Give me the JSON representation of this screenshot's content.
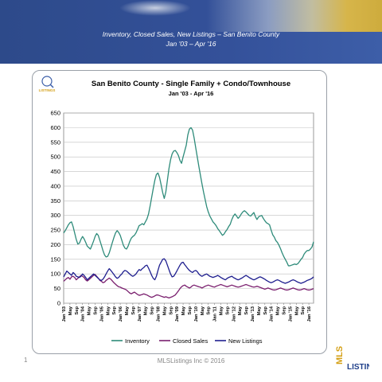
{
  "slide": {
    "title": "Inventory, Closed Sales, New Listings – San Benito County",
    "subtitle": "Jan '03 – Apr '16",
    "page_number": "1",
    "copyright": "MLSListings Inc © 2016",
    "logo_top": "MLS",
    "logo_bottom": "LISTINGS",
    "badge_text": "LISTINGS"
  },
  "chart_data": {
    "type": "line",
    "title": "San Benito County - Single Family + Condo/Townhouse",
    "subtitle": "Jan '03 - Apr '16",
    "ylim": [
      0,
      650
    ],
    "yticks": [
      0,
      50,
      100,
      150,
      200,
      250,
      300,
      350,
      400,
      450,
      500,
      550,
      600,
      650
    ],
    "grid": true,
    "legend": "bottom",
    "xticks": [
      "Jan '03",
      "May",
      "Sep",
      "Jan '04",
      "May",
      "Sep",
      "Jan '05",
      "May",
      "Sep",
      "Jan '06",
      "May",
      "Sep",
      "Jan '07",
      "May",
      "Sep",
      "Jan '08",
      "May",
      "Sep",
      "Jan '09",
      "May",
      "Sep",
      "Jan '10",
      "May",
      "Sep",
      "Jan '11",
      "May",
      "Sep",
      "Jan '12",
      "May",
      "Sep",
      "Jan '13",
      "May",
      "Sep",
      "Jan '14",
      "May",
      "Sep",
      "Jan '15",
      "May",
      "Sep",
      "Jan '16"
    ],
    "x_months": 160,
    "series": [
      {
        "name": "Inventory",
        "color": "#2e8b7a",
        "values": [
          240,
          248,
          258,
          268,
          275,
          278,
          262,
          240,
          218,
          202,
          205,
          218,
          228,
          220,
          208,
          195,
          190,
          185,
          198,
          212,
          228,
          238,
          232,
          215,
          198,
          180,
          165,
          158,
          160,
          172,
          190,
          208,
          225,
          240,
          248,
          242,
          232,
          215,
          198,
          188,
          185,
          195,
          210,
          222,
          228,
          232,
          240,
          252,
          265,
          268,
          272,
          268,
          278,
          288,
          305,
          332,
          362,
          392,
          420,
          440,
          445,
          430,
          405,
          378,
          358,
          380,
          420,
          460,
          490,
          510,
          520,
          522,
          515,
          505,
          488,
          478,
          500,
          520,
          540,
          575,
          595,
          600,
          592,
          565,
          532,
          500,
          468,
          438,
          408,
          380,
          355,
          330,
          312,
          298,
          288,
          278,
          272,
          265,
          255,
          248,
          240,
          232,
          236,
          245,
          252,
          262,
          270,
          286,
          298,
          305,
          298,
          290,
          296,
          305,
          312,
          316,
          312,
          306,
          300,
          298,
          304,
          310,
          296,
          286,
          295,
          298,
          300,
          290,
          282,
          275,
          272,
          268,
          250,
          234,
          226,
          214,
          208,
          198,
          186,
          172,
          160,
          150,
          140,
          128,
          128,
          130,
          132,
          134,
          132,
          135,
          142,
          150,
          156,
          168,
          175,
          180,
          180,
          185,
          192,
          210
        ]
      },
      {
        "name": "Closed Sales",
        "color": "#7a1f6e",
        "values": [
          75,
          80,
          85,
          88,
          82,
          90,
          92,
          88,
          80,
          85,
          90,
          95,
          92,
          88,
          80,
          76,
          80,
          85,
          90,
          95,
          98,
          92,
          86,
          78,
          75,
          70,
          72,
          78,
          82,
          86,
          82,
          76,
          70,
          65,
          60,
          56,
          55,
          52,
          50,
          48,
          45,
          40,
          35,
          32,
          35,
          38,
          34,
          30,
          27,
          28,
          30,
          32,
          30,
          28,
          25,
          22,
          20,
          22,
          25,
          28,
          28,
          26,
          24,
          22,
          20,
          22,
          20,
          18,
          20,
          22,
          25,
          28,
          35,
          42,
          50,
          56,
          60,
          62,
          58,
          55,
          52,
          55,
          60,
          62,
          60,
          58,
          56,
          55,
          52,
          55,
          58,
          60,
          62,
          60,
          58,
          56,
          55,
          58,
          60,
          62,
          64,
          62,
          60,
          58,
          56,
          58,
          60,
          62,
          60,
          58,
          56,
          55,
          56,
          58,
          60,
          62,
          64,
          62,
          60,
          58,
          56,
          55,
          56,
          58,
          56,
          54,
          52,
          50,
          48,
          50,
          52,
          50,
          48,
          46,
          45,
          46,
          48,
          50,
          52,
          50,
          48,
          46,
          45,
          46,
          48,
          50,
          52,
          50,
          48,
          46,
          45,
          46,
          48,
          50,
          48,
          46,
          45,
          46,
          48,
          50
        ]
      },
      {
        "name": "New Listings",
        "color": "#1f1f8f",
        "values": [
          90,
          100,
          110,
          105,
          100,
          95,
          105,
          100,
          92,
          90,
          88,
          92,
          100,
          95,
          88,
          80,
          85,
          90,
          95,
          100,
          95,
          90,
          85,
          80,
          78,
          82,
          90,
          100,
          110,
          118,
          112,
          105,
          98,
          90,
          85,
          88,
          95,
          100,
          108,
          112,
          110,
          105,
          100,
          95,
          92,
          95,
          100,
          108,
          115,
          112,
          118,
          122,
          128,
          130,
          120,
          108,
          95,
          85,
          80,
          92,
          112,
          130,
          140,
          150,
          152,
          145,
          130,
          115,
          100,
          90,
          92,
          100,
          110,
          120,
          130,
          138,
          140,
          132,
          125,
          118,
          112,
          108,
          105,
          110,
          112,
          108,
          100,
          95,
          92,
          95,
          98,
          100,
          96,
          92,
          90,
          88,
          90,
          92,
          95,
          92,
          88,
          85,
          82,
          80,
          85,
          88,
          90,
          92,
          88,
          85,
          82,
          80,
          82,
          85,
          88,
          92,
          95,
          92,
          88,
          85,
          82,
          80,
          82,
          85,
          88,
          90,
          88,
          85,
          82,
          78,
          75,
          72,
          70,
          72,
          75,
          78,
          80,
          78,
          75,
          72,
          70,
          68,
          70,
          72,
          75,
          78,
          80,
          78,
          75,
          72,
          70,
          68,
          70,
          72,
          75,
          78,
          80,
          82,
          85,
          90
        ]
      }
    ]
  }
}
